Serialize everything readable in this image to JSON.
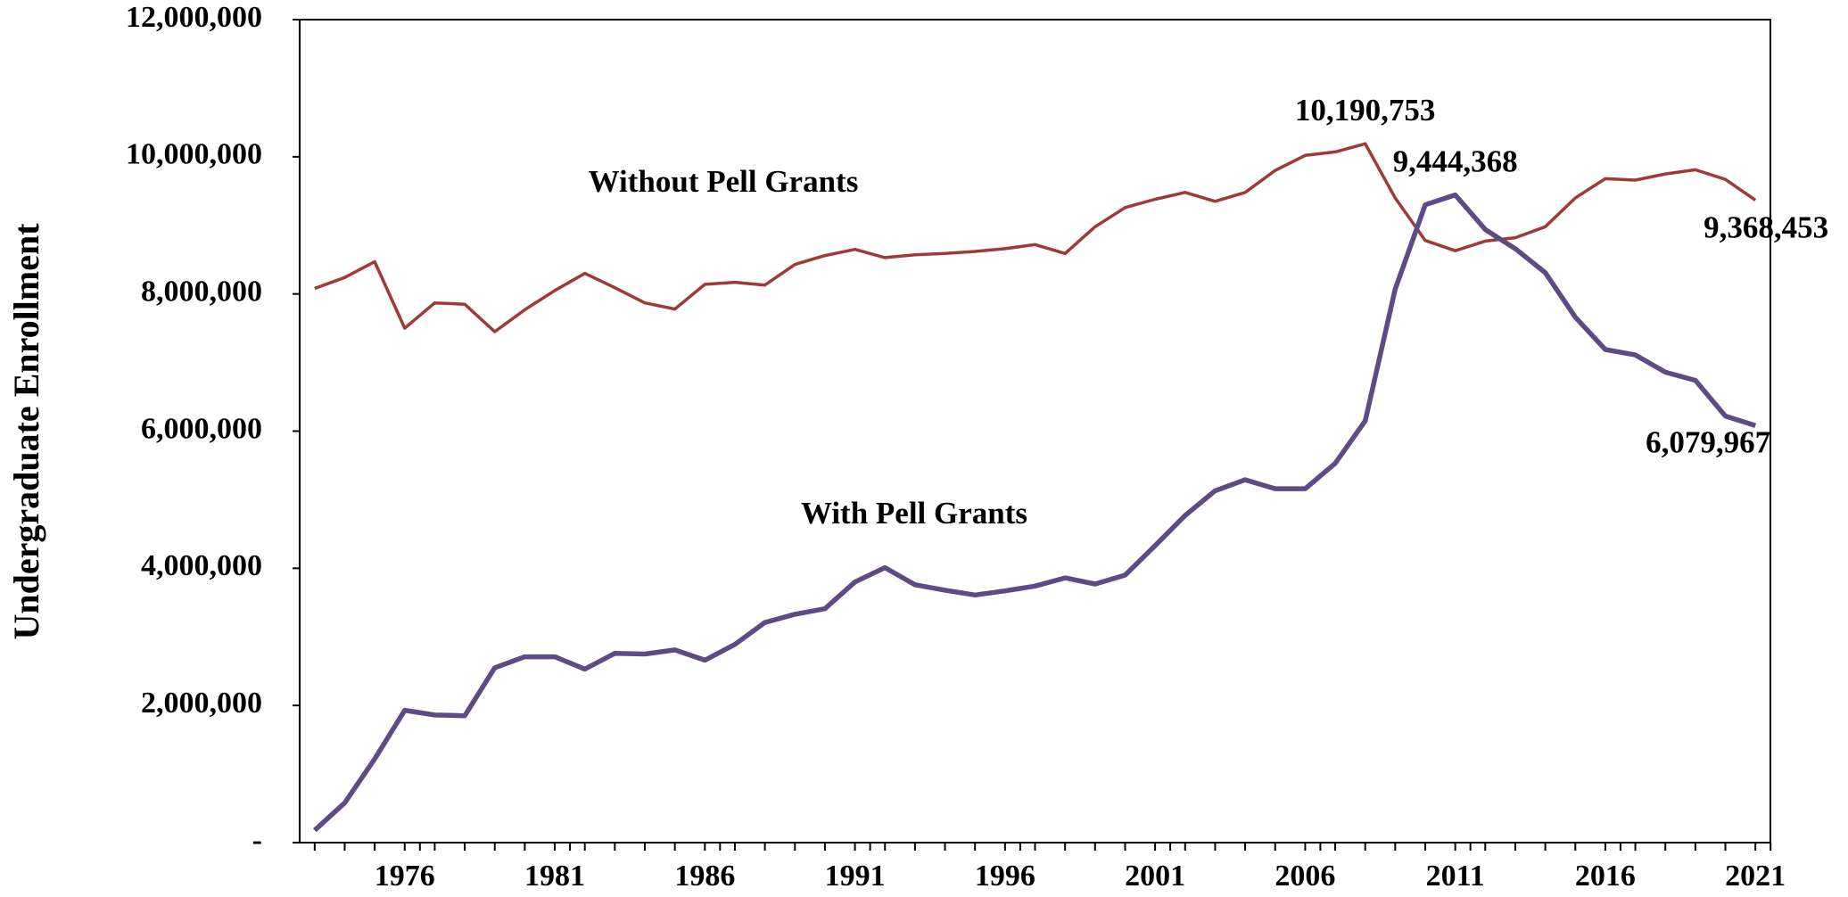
{
  "chart_data": {
    "type": "line",
    "y_label": "Undergraduate Enrollment",
    "x": [
      1973,
      1974,
      1975,
      1976,
      1977,
      1978,
      1979,
      1980,
      1981,
      1982,
      1983,
      1984,
      1985,
      1986,
      1987,
      1988,
      1989,
      1990,
      1991,
      1992,
      1993,
      1994,
      1995,
      1996,
      1997,
      1998,
      1999,
      2000,
      2001,
      2002,
      2003,
      2004,
      2005,
      2006,
      2007,
      2008,
      2009,
      2010,
      2011,
      2012,
      2013,
      2014,
      2015,
      2016,
      2017,
      2018,
      2019,
      2020,
      2021
    ],
    "xlim": [
      1972.5,
      2021.5
    ],
    "xticks": [
      1976,
      1981,
      1986,
      1991,
      1996,
      2001,
      2006,
      2011,
      2016,
      2021
    ],
    "ylim": [
      0,
      12000000
    ],
    "yticks": [
      {
        "value": 0,
        "label": "-"
      },
      {
        "value": 2000000,
        "label": "2,000,000"
      },
      {
        "value": 4000000,
        "label": "4,000,000"
      },
      {
        "value": 6000000,
        "label": "6,000,000"
      },
      {
        "value": 8000000,
        "label": "8,000,000"
      },
      {
        "value": 10000000,
        "label": "10,000,000"
      },
      {
        "value": 12000000,
        "label": "12,000,000"
      }
    ],
    "grid": false,
    "series": [
      {
        "name": "Without Pell Grants",
        "color": "#9e3a38",
        "values": [
          8080000,
          8240000,
          8470000,
          7500000,
          7870000,
          7850000,
          7450000,
          7770000,
          8050000,
          8300000,
          8090000,
          7870000,
          7780000,
          8140000,
          8170000,
          8130000,
          8430000,
          8560000,
          8650000,
          8530000,
          8570000,
          8590000,
          8620000,
          8660000,
          8720000,
          8590000,
          8980000,
          9260000,
          9380000,
          9480000,
          9350000,
          9480000,
          9800000,
          10020000,
          10070000,
          10190753,
          9400000,
          8780000,
          8630000,
          8770000,
          8820000,
          8980000,
          9400000,
          9680000,
          9660000,
          9750000,
          9810000,
          9670000,
          9368453
        ],
        "value_labels": [
          null,
          null,
          null,
          null,
          null,
          null,
          null,
          null,
          null,
          null,
          null,
          null,
          null,
          null,
          null,
          null,
          null,
          null,
          null,
          null,
          null,
          null,
          null,
          null,
          null,
          null,
          null,
          null,
          null,
          null,
          null,
          null,
          null,
          null,
          null,
          "10,190,753",
          null,
          null,
          null,
          null,
          null,
          null,
          null,
          null,
          null,
          null,
          null,
          null,
          "9,368,453"
        ]
      },
      {
        "name": "With Pell Grants",
        "color": "#5e4a85",
        "values": [
          180000,
          580000,
          1220000,
          1930000,
          1860000,
          1850000,
          2550000,
          2710000,
          2710000,
          2530000,
          2760000,
          2750000,
          2810000,
          2660000,
          2890000,
          3210000,
          3330000,
          3410000,
          3800000,
          4010000,
          3760000,
          3680000,
          3610000,
          3670000,
          3740000,
          3860000,
          3770000,
          3900000,
          4330000,
          4770000,
          5130000,
          5290000,
          5160000,
          5160000,
          5530000,
          6150000,
          8070000,
          9300000,
          9444368,
          8940000,
          8660000,
          8310000,
          7660000,
          7190000,
          7110000,
          6860000,
          6740000,
          6220000,
          6079967
        ],
        "value_labels": [
          null,
          null,
          null,
          null,
          null,
          null,
          null,
          null,
          null,
          null,
          null,
          null,
          null,
          null,
          null,
          null,
          null,
          null,
          null,
          null,
          null,
          null,
          null,
          null,
          null,
          null,
          null,
          null,
          null,
          null,
          null,
          null,
          null,
          null,
          null,
          null,
          null,
          null,
          "9,444,368",
          null,
          null,
          null,
          null,
          null,
          null,
          null,
          null,
          null,
          "6,079,967"
        ]
      }
    ]
  }
}
